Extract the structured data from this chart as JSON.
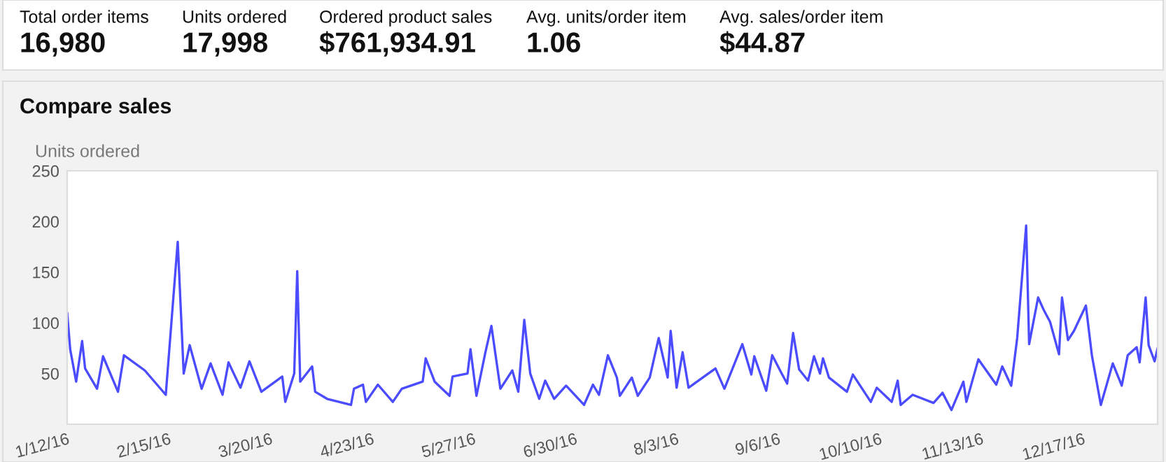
{
  "chart_data": [
    {
      "type": "other",
      "annotations": [
        "Total order items",
        "16,980",
        "Units ordered",
        "17,998",
        "Ordered product sales",
        "$761,934.91",
        "Avg. units/order item",
        "1.06",
        "Avg. sales/order item",
        "$44.87"
      ]
    },
    {
      "type": "line",
      "title": "Compare sales",
      "ylabel": "Units ordered",
      "x": [
        "2016-01-12",
        "2016-01-13",
        "2016-01-15",
        "2016-01-17",
        "2016-01-18",
        "2016-01-22",
        "2016-01-24",
        "2016-01-29",
        "2016-01-31",
        "2016-02-07",
        "2016-02-14",
        "2016-02-18",
        "2016-02-20",
        "2016-02-22",
        "2016-02-26",
        "2016-02-29",
        "2016-03-04",
        "2016-03-06",
        "2016-03-10",
        "2016-03-13",
        "2016-03-17",
        "2016-03-24",
        "2016-03-25",
        "2016-03-28",
        "2016-03-29",
        "2016-03-30",
        "2016-04-03",
        "2016-04-04",
        "2016-04-08",
        "2016-04-16",
        "2016-04-17",
        "2016-04-20",
        "2016-04-21",
        "2016-04-25",
        "2016-04-30",
        "2016-05-03",
        "2016-05-10",
        "2016-05-11",
        "2016-05-14",
        "2016-05-19",
        "2016-05-20",
        "2016-05-25",
        "2016-05-26",
        "2016-05-28",
        "2016-05-31",
        "2016-06-02",
        "2016-06-05",
        "2016-06-09",
        "2016-06-11",
        "2016-06-13",
        "2016-06-15",
        "2016-06-18",
        "2016-06-20",
        "2016-06-23",
        "2016-06-27",
        "2016-07-03",
        "2016-07-06",
        "2016-07-08",
        "2016-07-11",
        "2016-07-14",
        "2016-07-15",
        "2016-07-19",
        "2016-07-21",
        "2016-07-25",
        "2016-07-28",
        "2016-07-31",
        "2016-08-01",
        "2016-08-03",
        "2016-08-05",
        "2016-08-07",
        "2016-08-16",
        "2016-08-19",
        "2016-08-25",
        "2016-08-28",
        "2016-08-29",
        "2016-09-02",
        "2016-09-04",
        "2016-09-07",
        "2016-09-09",
        "2016-09-11",
        "2016-09-13",
        "2016-09-16",
        "2016-09-18",
        "2016-09-20",
        "2016-09-21",
        "2016-09-23",
        "2016-09-29",
        "2016-10-01",
        "2016-10-07",
        "2016-10-09",
        "2016-10-14",
        "2016-10-16",
        "2016-10-17",
        "2016-10-21",
        "2016-10-28",
        "2016-10-31",
        "2016-11-03",
        "2016-11-07",
        "2016-11-08",
        "2016-11-12",
        "2016-11-18",
        "2016-11-20",
        "2016-11-23",
        "2016-11-25",
        "2016-11-28",
        "2016-11-29",
        "2016-12-02",
        "2016-12-04",
        "2016-12-06",
        "2016-12-09",
        "2016-12-10",
        "2016-12-12",
        "2016-12-14",
        "2016-12-18",
        "2016-12-20",
        "2016-12-23",
        "2016-12-27",
        "2016-12-30",
        "2017-01-01",
        "2017-01-04",
        "2017-01-05",
        "2017-01-07",
        "2017-01-08",
        "2017-01-10",
        "2017-01-11"
      ],
      "series": [
        {
          "color": "#4b4bff",
          "values": [
            110,
            74,
            42,
            82,
            55,
            35,
            67,
            32,
            68,
            53,
            29,
            180,
            50,
            78,
            35,
            60,
            29,
            61,
            36,
            62,
            32,
            47,
            22,
            50,
            151,
            42,
            57,
            32,
            25,
            19,
            35,
            39,
            22,
            39,
            22,
            35,
            42,
            65,
            42,
            28,
            47,
            50,
            74,
            28,
            71,
            97,
            35,
            53,
            32,
            103,
            50,
            25,
            43,
            25,
            38,
            19,
            39,
            29,
            68,
            46,
            28,
            46,
            28,
            46,
            85,
            46,
            92,
            36,
            71,
            36,
            55,
            35,
            79,
            49,
            67,
            33,
            68,
            51,
            40,
            90,
            54,
            43,
            67,
            50,
            65,
            46,
            32,
            49,
            22,
            36,
            22,
            43,
            19,
            29,
            21,
            31,
            14,
            42,
            22,
            64,
            39,
            57,
            38,
            85,
            196,
            79,
            125,
            112,
            101,
            69,
            125,
            83,
            92,
            117,
            68,
            19,
            60,
            38,
            68,
            76,
            61,
            125,
            78,
            62,
            75
          ]
        }
      ],
      "xlim": [
        "2016-01-12",
        "2017-01-11"
      ],
      "xticks": [
        {
          "value": "2016-01-12",
          "label": "1/12/16"
        },
        {
          "value": "2016-02-15",
          "label": "2/15/16"
        },
        {
          "value": "2016-03-20",
          "label": "3/20/16"
        },
        {
          "value": "2016-04-23",
          "label": "4/23/16"
        },
        {
          "value": "2016-05-27",
          "label": "5/27/16"
        },
        {
          "value": "2016-06-30",
          "label": "6/30/16"
        },
        {
          "value": "2016-08-03",
          "label": "8/3/16"
        },
        {
          "value": "2016-09-06",
          "label": "9/6/16"
        },
        {
          "value": "2016-10-10",
          "label": "10/10/16"
        },
        {
          "value": "2016-11-13",
          "label": "11/13/16"
        },
        {
          "value": "2016-12-17",
          "label": "12/17/16"
        }
      ],
      "ylim": [
        0,
        250
      ],
      "yticks": [
        50,
        100,
        150,
        200,
        250
      ],
      "grid": false,
      "legend": false,
      "marker": "none",
      "line_style": "solid"
    }
  ]
}
